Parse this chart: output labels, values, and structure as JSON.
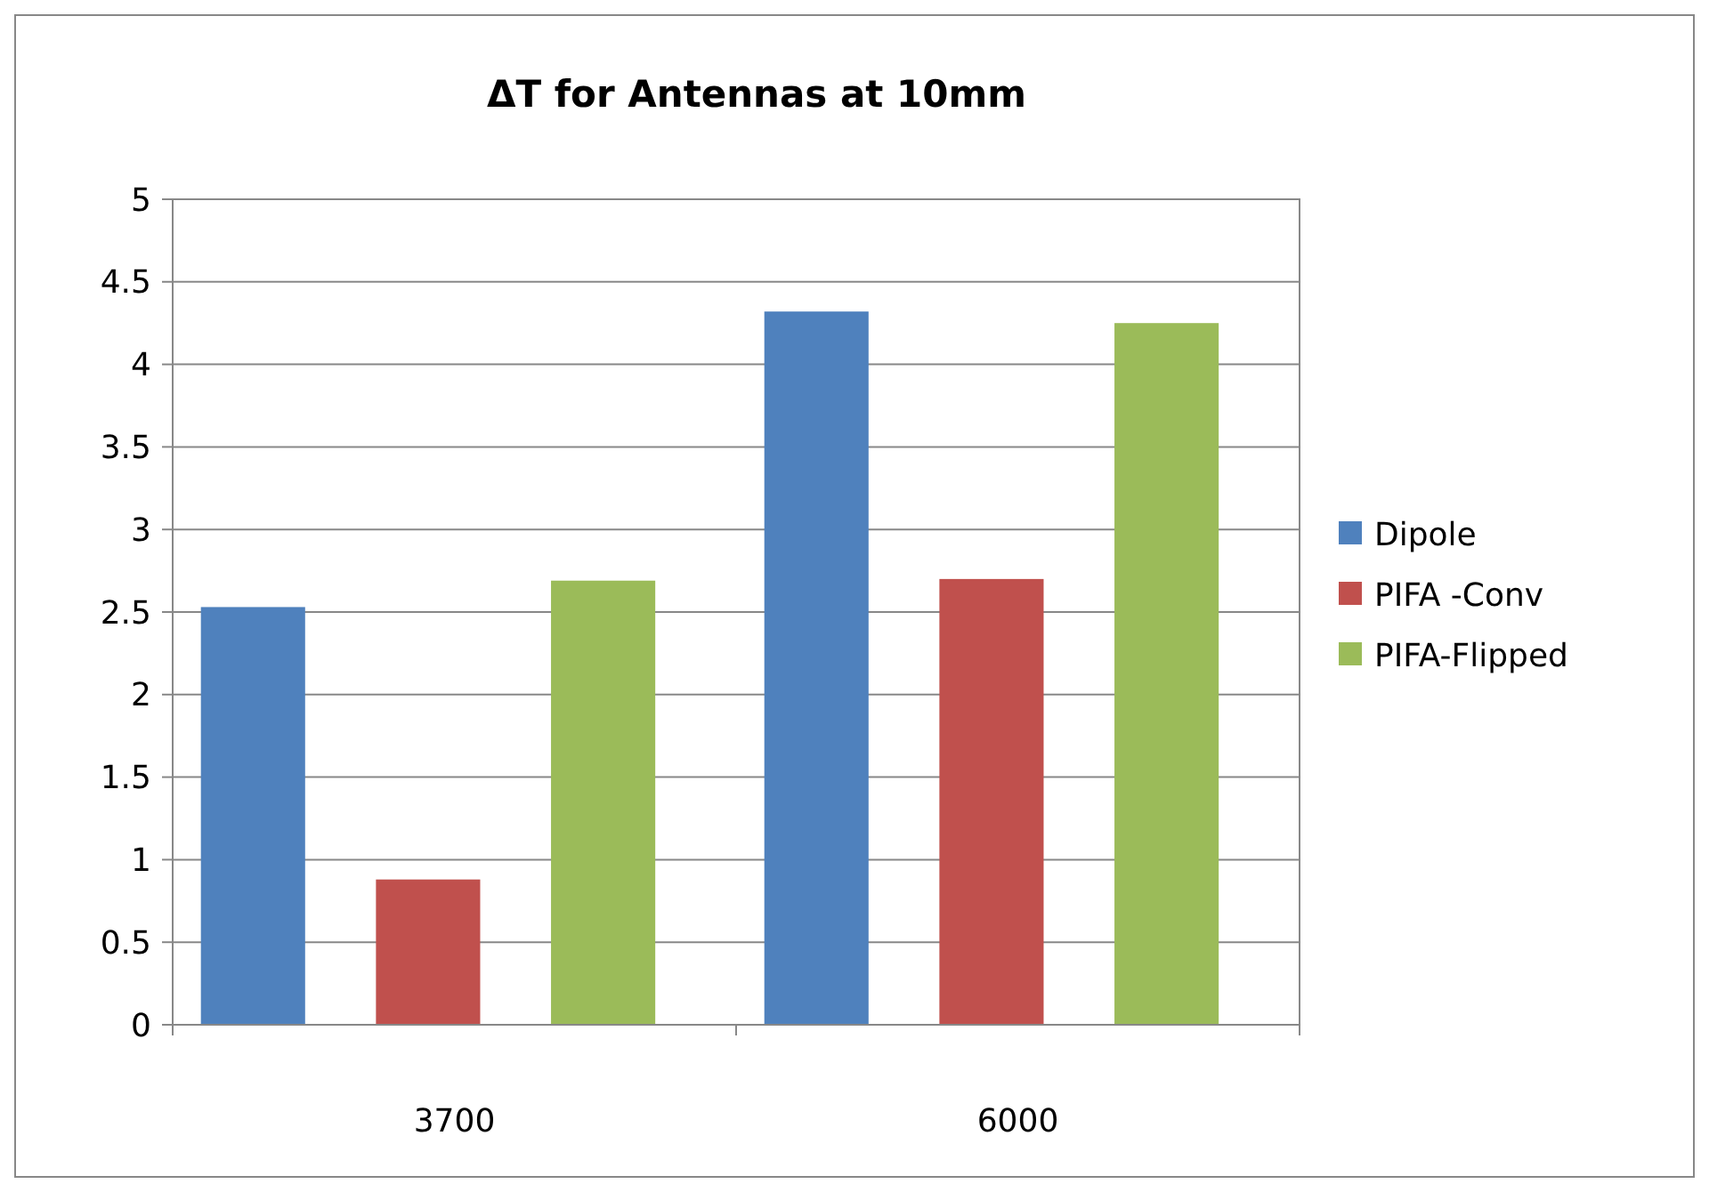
{
  "chart_data": {
    "type": "bar",
    "title": "ΔT for Antennas at 10mm",
    "categories": [
      "3700",
      "6000"
    ],
    "series": [
      {
        "name": "Dipole",
        "color": "#4f81bd",
        "values": [
          2.53,
          4.32
        ]
      },
      {
        "name": "PIFA -Conv",
        "color": "#c0504d",
        "values": [
          0.88,
          2.7
        ]
      },
      {
        "name": "PIFA-Flipped",
        "color": "#9bbb59",
        "values": [
          2.69,
          4.25
        ]
      }
    ],
    "ylim": [
      0,
      5
    ],
    "yticks": [
      0,
      0.5,
      1,
      1.5,
      2,
      2.5,
      3,
      3.5,
      4,
      4.5,
      5
    ],
    "grid": "y",
    "legend": "right"
  }
}
